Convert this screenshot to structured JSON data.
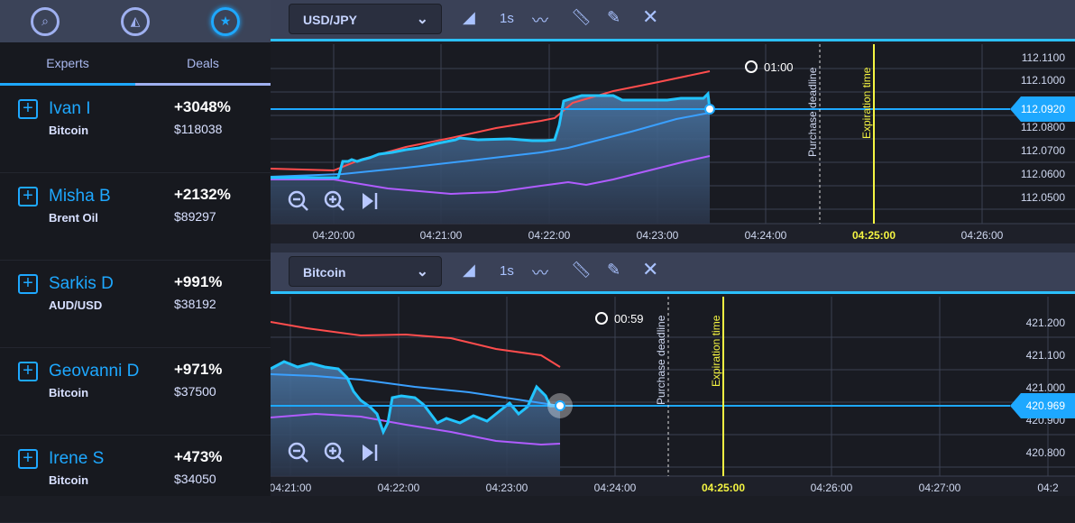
{
  "sidebar": {
    "icons": [
      "analytics-icon",
      "signals-icon",
      "star-badge-icon"
    ],
    "tabs": [
      "Experts",
      "Deals"
    ],
    "experts": [
      {
        "name": "Ivan I",
        "asset": "Bitcoin",
        "pct": "+3048%",
        "amount": "$118038"
      },
      {
        "name": "Misha B",
        "asset": "Brent Oil",
        "pct": "+2132%",
        "amount": "$89297"
      },
      {
        "name": "Sarkis D",
        "asset": "AUD/USD",
        "pct": "+991%",
        "amount": "$38192"
      },
      {
        "name": "Geovanni D",
        "asset": "Bitcoin",
        "pct": "+971%",
        "amount": "$37500"
      },
      {
        "name": "Irene S",
        "asset": "Bitcoin",
        "pct": "+473%",
        "amount": "$34050"
      }
    ]
  },
  "chart1": {
    "asset": "USD/JPY",
    "interval": "1s",
    "timer": "01:00",
    "price": "112.0920",
    "y_labels": [
      "112.1100",
      "112.1000",
      "112.0800",
      "112.0700",
      "112.0600",
      "112.0500"
    ],
    "x_labels": [
      "04:20:00",
      "04:21:00",
      "04:22:00",
      "04:23:00",
      "04:24:00",
      "04:25:00",
      "04:26:00"
    ],
    "purchase": "Purchase deadline",
    "expiration": "Expiration time"
  },
  "chart2": {
    "asset": "Bitcoin",
    "interval": "1s",
    "timer": "00:59",
    "price": "420.969",
    "y_labels": [
      "421.200",
      "421.100",
      "421.000",
      "420.900",
      "420.800"
    ],
    "x_labels": [
      "04:21:00",
      "04:22:00",
      "04:23:00",
      "04:24:00",
      "04:25:00",
      "04:26:00",
      "04:27:00",
      "04:2"
    ],
    "purchase": "Purchase deadline",
    "expiration": "Expiration time"
  },
  "colors": {
    "accent": "#1ea8ff",
    "sma_fast": "#ff4d4d",
    "sma_slow": "#b05cff",
    "expiration": "#f5f542"
  }
}
